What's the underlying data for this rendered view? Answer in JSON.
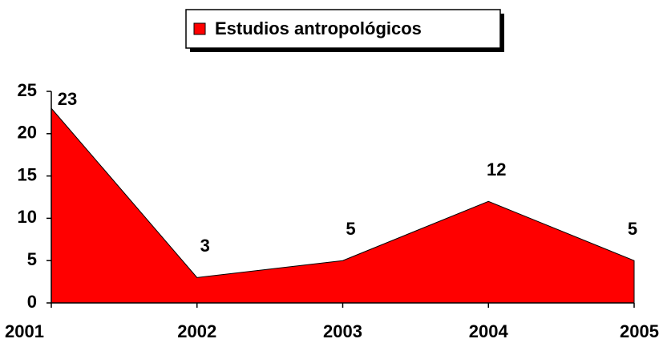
{
  "chart_data": {
    "type": "area",
    "categories": [
      "2001",
      "2002",
      "2003",
      "2004",
      "2005"
    ],
    "series": [
      {
        "name": "Estudios antropológicos",
        "color": "#ff0000",
        "values": [
          23,
          3,
          5,
          12,
          5
        ]
      }
    ],
    "ylim": [
      0,
      25
    ],
    "yticks": [
      0,
      5,
      10,
      15,
      20,
      25
    ],
    "legend": "top"
  }
}
